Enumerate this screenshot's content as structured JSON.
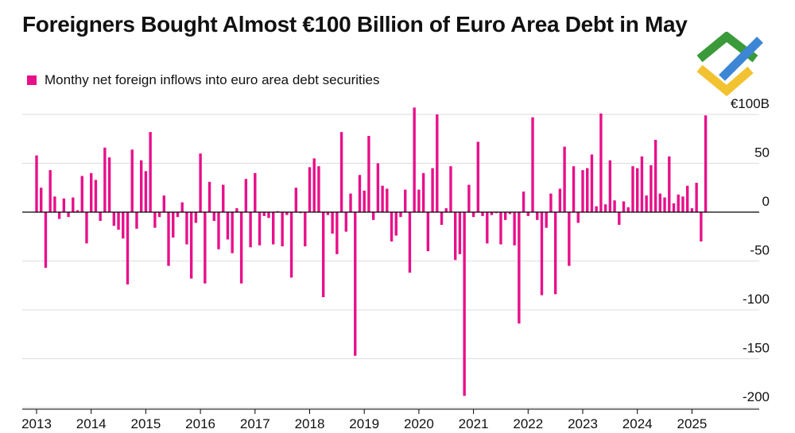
{
  "colors": {
    "bar": "#e8108a",
    "axis": "#000000",
    "grid": "#dddddd",
    "text": "#111111"
  },
  "logo": {
    "name": "brand-logo-icon"
  },
  "chart_data": {
    "type": "bar",
    "title": "Foreigners Bought Almost €100 Billion of Euro Area Debt in May",
    "legend": "Monthy net foreign inflows into euro area debt securities",
    "xlabel": "",
    "ylabel": "",
    "ylim": [
      -205,
      110
    ],
    "y_ticks": [
      {
        "value": 100,
        "label": "€100B"
      },
      {
        "value": 50,
        "label": "50"
      },
      {
        "value": 0,
        "label": "0"
      },
      {
        "value": -50,
        "label": "-50"
      },
      {
        "value": -100,
        "label": "-100"
      },
      {
        "value": -150,
        "label": "-150"
      },
      {
        "value": -200,
        "label": "-200"
      }
    ],
    "x_ticks": [
      "2013",
      "2014",
      "2015",
      "2016",
      "2017",
      "2018",
      "2019",
      "2020",
      "2021",
      "2022",
      "2023",
      "2024",
      "2025"
    ],
    "start": "2013-01",
    "series": [
      {
        "name": "Monthy net foreign inflows into euro area debt securities",
        "values": [
          58,
          25,
          -57,
          43,
          16,
          -7,
          14,
          -5,
          15,
          2,
          37,
          -32,
          40,
          33,
          -9,
          66,
          56,
          -14,
          -18,
          -27,
          -74,
          64,
          -17,
          53,
          42,
          82,
          -16,
          -5,
          17,
          -55,
          -26,
          -5,
          10,
          -33,
          -68,
          -11,
          60,
          -73,
          31,
          -9,
          -38,
          28,
          -28,
          -42,
          4,
          -73,
          34,
          -36,
          40,
          -34,
          -4,
          -6,
          -33,
          1,
          -35,
          -3,
          -67,
          25,
          -1,
          -35,
          46,
          55,
          47,
          -87,
          -3,
          -22,
          -43,
          82,
          -20,
          19,
          -147,
          38,
          22,
          78,
          -8,
          50,
          27,
          24,
          -30,
          -24,
          -5,
          23,
          -62,
          107,
          23,
          40,
          -40,
          45,
          100,
          -13,
          4,
          47,
          -49,
          -43,
          -188,
          28,
          -5,
          72,
          -4,
          -32,
          -3,
          -1,
          -33,
          -8,
          -2,
          -34,
          -114,
          21,
          -4,
          97,
          -8,
          -85,
          -16,
          19,
          -84,
          24,
          67,
          -55,
          47,
          -11,
          43,
          45,
          59,
          6,
          101,
          8,
          53,
          12,
          -13,
          11,
          5,
          47,
          45,
          57,
          17,
          48,
          74,
          19,
          15,
          57,
          9,
          18,
          16,
          27,
          4,
          30,
          -30,
          99
        ]
      }
    ]
  }
}
